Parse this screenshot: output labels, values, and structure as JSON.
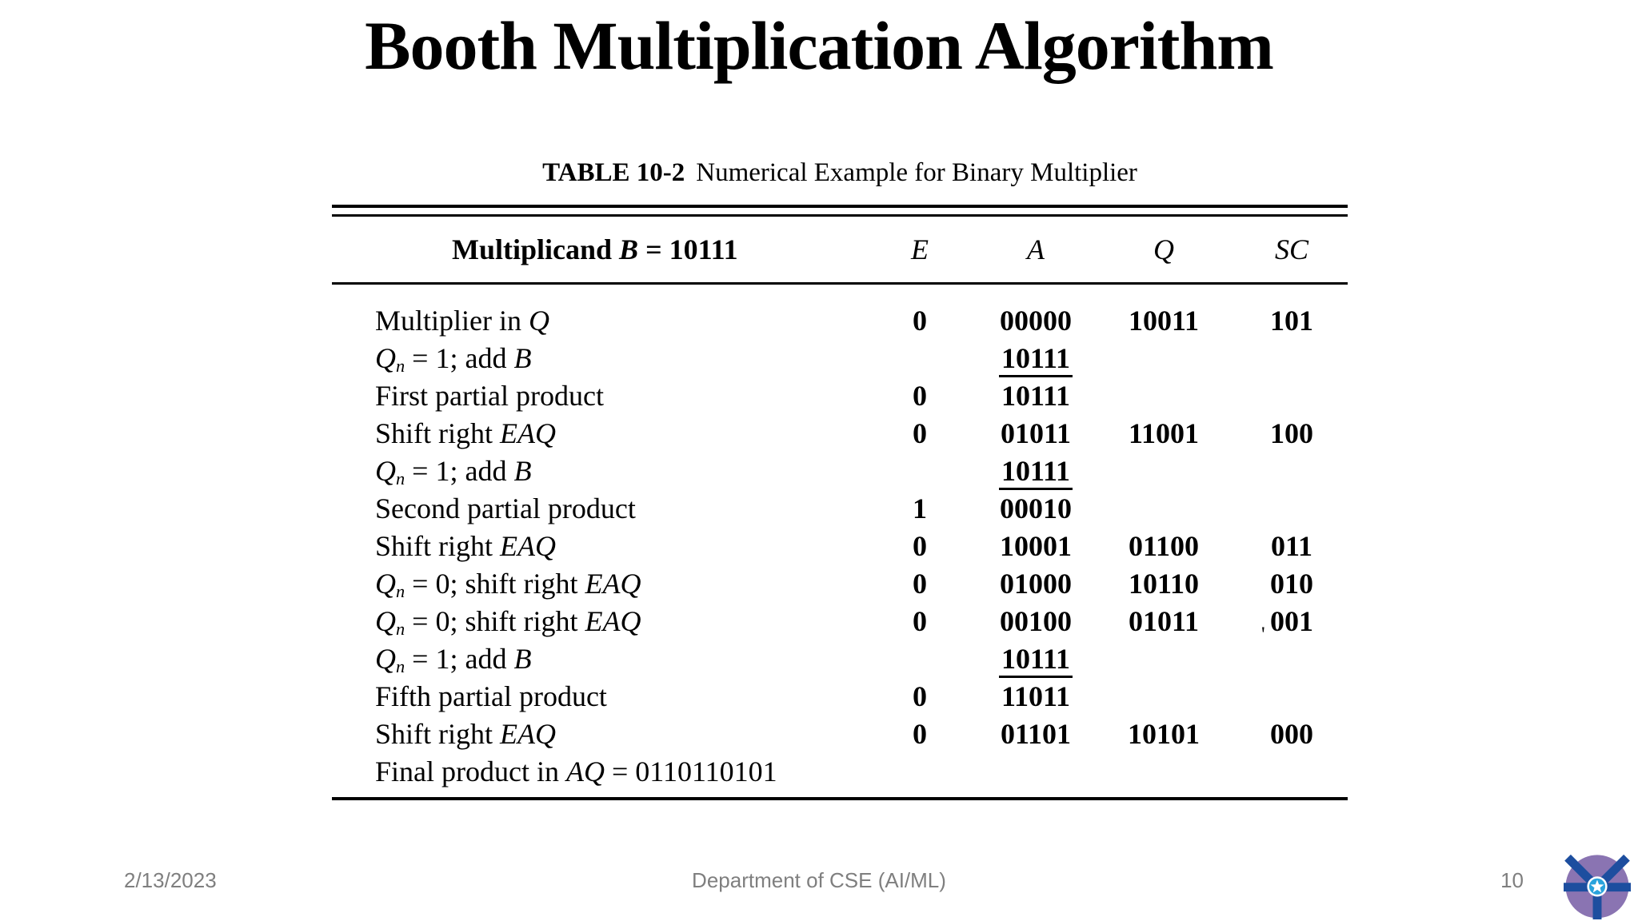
{
  "slide": {
    "title": "Booth Multiplication Algorithm"
  },
  "table": {
    "caption_label": "TABLE 10-2",
    "caption_text": "Numerical Example for Binary Multiplier",
    "header": {
      "label_segments": [
        [
          "Multiplicand ",
          "n"
        ],
        [
          "B",
          "i"
        ],
        [
          " = 10111",
          "n"
        ]
      ],
      "columns": [
        "E",
        "A",
        "Q",
        "SC"
      ]
    },
    "rows": [
      {
        "label": [
          [
            "Multiplier in ",
            "n"
          ],
          [
            "Q",
            "i"
          ]
        ],
        "e": "0",
        "a": "00000",
        "q": "10011",
        "sc": "101"
      },
      {
        "label": [
          [
            "Q",
            "i"
          ],
          [
            "n",
            "sub"
          ],
          [
            " = 1; add ",
            "n"
          ],
          [
            "B",
            "i"
          ]
        ],
        "a": "10111",
        "a_underlined": true
      },
      {
        "label": [
          [
            "First partial product",
            "n"
          ]
        ],
        "e": "0",
        "a": "10111"
      },
      {
        "label": [
          [
            "Shift right ",
            "n"
          ],
          [
            "EAQ",
            "i"
          ]
        ],
        "e": "0",
        "a": "01011",
        "q": "11001",
        "sc": "100"
      },
      {
        "label": [
          [
            "Q",
            "i"
          ],
          [
            "n",
            "sub"
          ],
          [
            " = 1; add ",
            "n"
          ],
          [
            "B",
            "i"
          ]
        ],
        "a": "10111",
        "a_underlined": true
      },
      {
        "label": [
          [
            "Second partial product",
            "n"
          ]
        ],
        "e": "1",
        "a": "00010"
      },
      {
        "label": [
          [
            "Shift right ",
            "n"
          ],
          [
            "EAQ",
            "i"
          ]
        ],
        "e": "0",
        "a": "10001",
        "q": "01100",
        "sc": "011"
      },
      {
        "label": [
          [
            "Q",
            "i"
          ],
          [
            "n",
            "sub"
          ],
          [
            " = 0; shift right ",
            "n"
          ],
          [
            "EAQ",
            "i"
          ]
        ],
        "e": "0",
        "a": "01000",
        "q": "10110",
        "sc": "010"
      },
      {
        "label": [
          [
            "Q",
            "i"
          ],
          [
            "n",
            "sub"
          ],
          [
            " = 0; shift right ",
            "n"
          ],
          [
            "EAQ",
            "i"
          ]
        ],
        "e": "0",
        "a": "00100",
        "q": "01011",
        "sc": "001",
        "tick": "'"
      },
      {
        "label": [
          [
            "Q",
            "i"
          ],
          [
            "n",
            "sub"
          ],
          [
            " = 1; add ",
            "n"
          ],
          [
            "B",
            "i"
          ]
        ],
        "a": "10111",
        "a_underlined": true
      },
      {
        "label": [
          [
            "Fifth partial product",
            "n"
          ]
        ],
        "e": "0",
        "a": "11011"
      },
      {
        "label": [
          [
            "Shift right ",
            "n"
          ],
          [
            "EAQ",
            "i"
          ]
        ],
        "e": "0",
        "a": "01101",
        "q": "10101",
        "sc": "000"
      },
      {
        "label": [
          [
            "Final product in ",
            "n"
          ],
          [
            "AQ",
            "i"
          ],
          [
            " = 0110110101",
            "n"
          ]
        ]
      }
    ]
  },
  "footer": {
    "date": "2/13/2023",
    "center": "Department of CSE (AI/ML)",
    "page": "10"
  },
  "logo": {
    "name": "institution-logo",
    "colors": {
      "purple": "#8a74b2",
      "blue": "#1d4e9f",
      "star": "#29a3dc",
      "star_disc": "#ffffff"
    }
  }
}
